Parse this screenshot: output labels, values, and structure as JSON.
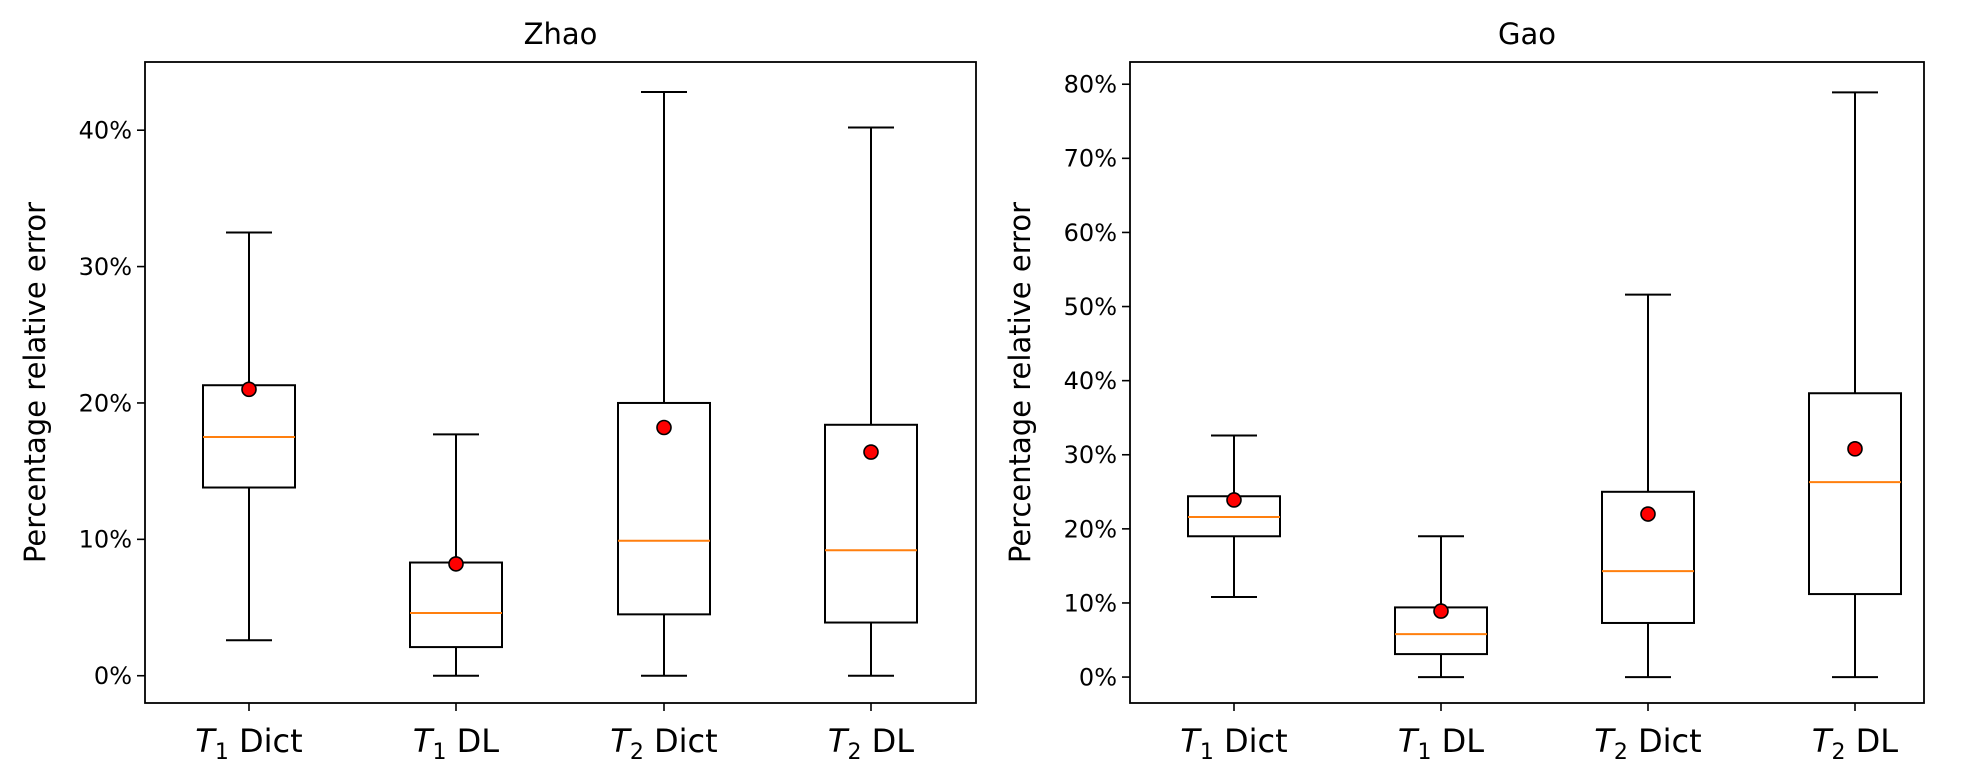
{
  "chart_data": [
    {
      "type": "box",
      "title": "Zhao",
      "ylabel": "Percentage relative error",
      "xlabel": "",
      "ylim": [
        -2,
        45
      ],
      "yticks": [
        "0%",
        "10%",
        "20%",
        "30%",
        "40%"
      ],
      "ytick_values": [
        0,
        10,
        20,
        30,
        40
      ],
      "categories": [
        {
          "sym": "T",
          "sub": "1",
          "rest": " Dict"
        },
        {
          "sym": "T",
          "sub": "1",
          "rest": " DL"
        },
        {
          "sym": "T",
          "sub": "2",
          "rest": " Dict"
        },
        {
          "sym": "T",
          "sub": "2",
          "rest": " DL"
        }
      ],
      "boxes": [
        {
          "whisker_low": 2.6,
          "q1": 13.8,
          "median": 17.5,
          "q3": 21.3,
          "whisker_high": 32.5,
          "mean": 21.0
        },
        {
          "whisker_low": 0.0,
          "q1": 2.1,
          "median": 4.6,
          "q3": 8.3,
          "whisker_high": 17.7,
          "mean": 8.2
        },
        {
          "whisker_low": 0.0,
          "q1": 4.5,
          "median": 9.9,
          "q3": 20.0,
          "whisker_high": 42.8,
          "mean": 18.2
        },
        {
          "whisker_low": 0.0,
          "q1": 3.9,
          "median": 9.2,
          "q3": 18.4,
          "whisker_high": 40.2,
          "mean": 16.4
        }
      ]
    },
    {
      "type": "box",
      "title": "Gao",
      "ylabel": "Percentage relative error",
      "xlabel": "",
      "ylim": [
        -3.5,
        83
      ],
      "yticks": [
        "0%",
        "10%",
        "20%",
        "30%",
        "40%",
        "50%",
        "60%",
        "70%",
        "80%"
      ],
      "ytick_values": [
        0,
        10,
        20,
        30,
        40,
        50,
        60,
        70,
        80
      ],
      "categories": [
        {
          "sym": "T",
          "sub": "1",
          "rest": " Dict"
        },
        {
          "sym": "T",
          "sub": "1",
          "rest": " DL"
        },
        {
          "sym": "T",
          "sub": "2",
          "rest": " Dict"
        },
        {
          "sym": "T",
          "sub": "2",
          "rest": " DL"
        }
      ],
      "boxes": [
        {
          "whisker_low": 10.8,
          "q1": 19.0,
          "median": 21.6,
          "q3": 24.4,
          "whisker_high": 32.6,
          "mean": 23.9
        },
        {
          "whisker_low": 0.0,
          "q1": 3.1,
          "median": 5.8,
          "q3": 9.4,
          "whisker_high": 19.0,
          "mean": 8.9
        },
        {
          "whisker_low": 0.0,
          "q1": 7.3,
          "median": 14.3,
          "q3": 25.0,
          "whisker_high": 51.6,
          "mean": 22.0
        },
        {
          "whisker_low": 0.0,
          "q1": 11.2,
          "median": 26.3,
          "q3": 38.3,
          "whisker_high": 78.9,
          "mean": 30.8
        }
      ]
    }
  ],
  "colors": {
    "box_edge": "#000000",
    "median": "#ff7f0e",
    "mean_fill": "#ff0000",
    "mean_edge": "#000000",
    "background": "#ffffff"
  }
}
